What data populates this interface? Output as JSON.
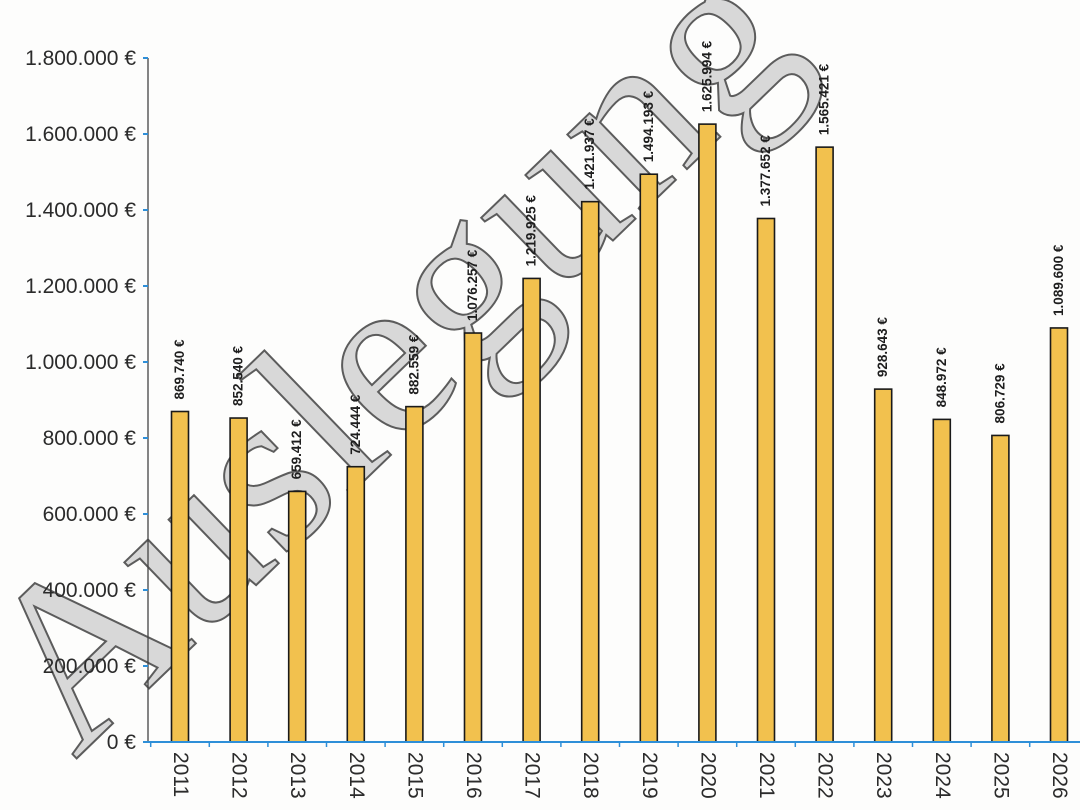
{
  "chart_data": {
    "type": "bar",
    "categories": [
      "2011",
      "2012",
      "2013",
      "2014",
      "2015",
      "2016",
      "2017",
      "2018",
      "2019",
      "2020",
      "2021",
      "2022",
      "2023",
      "2024",
      "2025",
      "2026"
    ],
    "values": [
      869740,
      852540,
      659412,
      724444,
      882559,
      1076257,
      1219925,
      1421937,
      1494193,
      1625994,
      1377652,
      1565421,
      928643,
      848972,
      806729,
      1089600
    ],
    "data_labels": [
      "869.740 €",
      "852.540 €",
      "659.412 €",
      "724.444 €",
      "882.559 €",
      "1.076.257 €",
      "1.219.925 €",
      "1.421.937 €",
      "1.494.193 €",
      "1.625.994 €",
      "1.377.652 €",
      "1.565.421 €",
      "928.643 €",
      "848.972 €",
      "806.729 €",
      "1.089.600 €"
    ],
    "y_ticks": [
      0,
      200000,
      400000,
      600000,
      800000,
      1000000,
      1200000,
      1400000,
      1600000,
      1800000
    ],
    "y_tick_labels": [
      "0 €",
      "200.000 €",
      "400.000 €",
      "600.000 €",
      "800.000 €",
      "1.000.000 €",
      "1.200.000 €",
      "1.400.000 €",
      "1.600.000 €",
      "1.800.000 €"
    ],
    "ylim": [
      0,
      1800000
    ],
    "grid": false,
    "legend": "none",
    "bar_color": "#f2c14e",
    "bar_edge_color": "#1a1a1a",
    "axis_color": "#2e8fd8",
    "watermark": "Auslegung"
  }
}
